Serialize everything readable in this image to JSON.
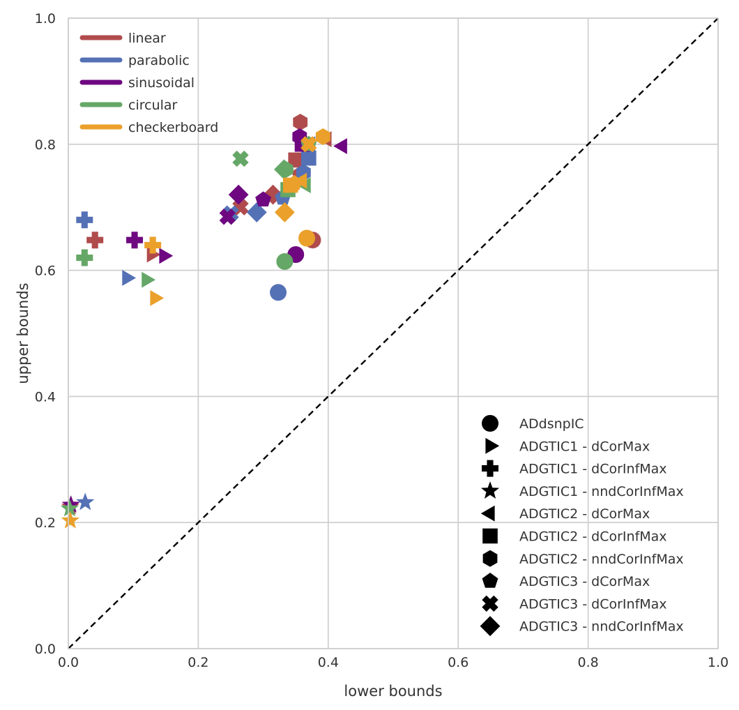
{
  "chart_data": {
    "type": "scatter",
    "xlabel": "lower bounds",
    "ylabel": "upper bounds",
    "xlim": [
      0,
      1
    ],
    "ylim": [
      0,
      1
    ],
    "xticks": [
      "0.0",
      "0.2",
      "0.4",
      "0.6",
      "0.8",
      "1.0"
    ],
    "yticks": [
      "0.0",
      "0.2",
      "0.4",
      "0.6",
      "0.8",
      "1.0"
    ],
    "grid": true,
    "reference_line": {
      "style": "dashed",
      "from": [
        0,
        0
      ],
      "to": [
        1,
        1
      ],
      "color": "#000000"
    },
    "color_legend": {
      "placement": "top-left",
      "entries": [
        {
          "name": "linear",
          "color": "#b04b4d"
        },
        {
          "name": "parabolic",
          "color": "#5471b6"
        },
        {
          "name": "sinusoidal",
          "color": "#6e0780"
        },
        {
          "name": "circular",
          "color": "#65a767"
        },
        {
          "name": "checkerboard",
          "color": "#eaa02a"
        }
      ]
    },
    "marker_legend": {
      "placement": "bottom-right",
      "entries": [
        {
          "name": "ADdsnpIC",
          "marker": "circle"
        },
        {
          "name": "ADGTIC1 - dCorMax",
          "marker": "triangle-right"
        },
        {
          "name": "ADGTIC1 - dCorInfMax",
          "marker": "plus"
        },
        {
          "name": "ADGTIC1 - nndCorInfMax",
          "marker": "star"
        },
        {
          "name": "ADGTIC2 - dCorMax",
          "marker": "triangle-left"
        },
        {
          "name": "ADGTIC2 - dCorInfMax",
          "marker": "square"
        },
        {
          "name": "ADGTIC2 - nndCorInfMax",
          "marker": "hexagon"
        },
        {
          "name": "ADGTIC3 - dCorMax",
          "marker": "pentagon"
        },
        {
          "name": "ADGTIC3 - dCorInfMax",
          "marker": "x"
        },
        {
          "name": "ADGTIC3 - nndCorInfMax",
          "marker": "diamond"
        }
      ]
    },
    "points": [
      {
        "series": "linear",
        "marker": "circle",
        "x": 0.376,
        "y": 0.648
      },
      {
        "series": "linear",
        "marker": "triangle-right",
        "x": 0.128,
        "y": 0.625
      },
      {
        "series": "linear",
        "marker": "plus",
        "x": 0.041,
        "y": 0.648
      },
      {
        "series": "linear",
        "marker": "star",
        "x": 0.003,
        "y": 0.225
      },
      {
        "series": "linear",
        "marker": "triangle-left",
        "x": 0.398,
        "y": 0.808
      },
      {
        "series": "linear",
        "marker": "square",
        "x": 0.35,
        "y": 0.775
      },
      {
        "series": "linear",
        "marker": "hexagon",
        "x": 0.357,
        "y": 0.835
      },
      {
        "series": "linear",
        "marker": "pentagon",
        "x": 0.356,
        "y": 0.752
      },
      {
        "series": "linear",
        "marker": "x",
        "x": 0.265,
        "y": 0.7
      },
      {
        "series": "linear",
        "marker": "diamond",
        "x": 0.315,
        "y": 0.72
      },
      {
        "series": "parabolic",
        "marker": "circle",
        "x": 0.323,
        "y": 0.565
      },
      {
        "series": "parabolic",
        "marker": "triangle-right",
        "x": 0.09,
        "y": 0.588
      },
      {
        "series": "parabolic",
        "marker": "plus",
        "x": 0.025,
        "y": 0.68
      },
      {
        "series": "parabolic",
        "marker": "star",
        "x": 0.026,
        "y": 0.232
      },
      {
        "series": "parabolic",
        "marker": "triangle-left",
        "x": 0.373,
        "y": 0.8
      },
      {
        "series": "parabolic",
        "marker": "square",
        "x": 0.37,
        "y": 0.778
      },
      {
        "series": "parabolic",
        "marker": "hexagon",
        "x": 0.362,
        "y": 0.755
      },
      {
        "series": "parabolic",
        "marker": "pentagon",
        "x": 0.33,
        "y": 0.715
      },
      {
        "series": "parabolic",
        "marker": "x",
        "x": 0.25,
        "y": 0.69
      },
      {
        "series": "parabolic",
        "marker": "diamond",
        "x": 0.29,
        "y": 0.692
      },
      {
        "series": "sinusoidal",
        "marker": "circle",
        "x": 0.35,
        "y": 0.625
      },
      {
        "series": "sinusoidal",
        "marker": "triangle-right",
        "x": 0.147,
        "y": 0.623
      },
      {
        "series": "sinusoidal",
        "marker": "plus",
        "x": 0.102,
        "y": 0.648
      },
      {
        "series": "sinusoidal",
        "marker": "star",
        "x": 0.004,
        "y": 0.228
      },
      {
        "series": "sinusoidal",
        "marker": "triangle-left",
        "x": 0.422,
        "y": 0.797
      },
      {
        "series": "sinusoidal",
        "marker": "square",
        "x": 0.36,
        "y": 0.8
      },
      {
        "series": "sinusoidal",
        "marker": "hexagon",
        "x": 0.356,
        "y": 0.812
      },
      {
        "series": "sinusoidal",
        "marker": "pentagon",
        "x": 0.3,
        "y": 0.712
      },
      {
        "series": "sinusoidal",
        "marker": "x",
        "x": 0.245,
        "y": 0.685
      },
      {
        "series": "sinusoidal",
        "marker": "diamond",
        "x": 0.262,
        "y": 0.72
      },
      {
        "series": "circular",
        "marker": "circle",
        "x": 0.333,
        "y": 0.614
      },
      {
        "series": "circular",
        "marker": "triangle-right",
        "x": 0.12,
        "y": 0.585
      },
      {
        "series": "circular",
        "marker": "plus",
        "x": 0.025,
        "y": 0.62
      },
      {
        "series": "circular",
        "marker": "star",
        "x": 0.002,
        "y": 0.222
      },
      {
        "series": "circular",
        "marker": "triangle-left",
        "x": 0.366,
        "y": 0.735
      },
      {
        "series": "circular",
        "marker": "square",
        "x": 0.338,
        "y": 0.728
      },
      {
        "series": "circular",
        "marker": "hexagon",
        "x": 0.335,
        "y": 0.76
      },
      {
        "series": "circular",
        "marker": "pentagon",
        "x": 0.37,
        "y": 0.8
      },
      {
        "series": "circular",
        "marker": "x",
        "x": 0.265,
        "y": 0.777
      },
      {
        "series": "circular",
        "marker": "diamond",
        "x": 0.332,
        "y": 0.76
      },
      {
        "series": "checkerboard",
        "marker": "circle",
        "x": 0.367,
        "y": 0.651
      },
      {
        "series": "checkerboard",
        "marker": "triangle-right",
        "x": 0.133,
        "y": 0.556
      },
      {
        "series": "checkerboard",
        "marker": "plus",
        "x": 0.13,
        "y": 0.64
      },
      {
        "series": "checkerboard",
        "marker": "star",
        "x": 0.003,
        "y": 0.203
      },
      {
        "series": "checkerboard",
        "marker": "triangle-left",
        "x": 0.36,
        "y": 0.742
      },
      {
        "series": "checkerboard",
        "marker": "square",
        "x": 0.342,
        "y": 0.735
      },
      {
        "series": "checkerboard",
        "marker": "hexagon",
        "x": 0.392,
        "y": 0.812
      },
      {
        "series": "checkerboard",
        "marker": "pentagon",
        "x": 0.348,
        "y": 0.738
      },
      {
        "series": "checkerboard",
        "marker": "x",
        "x": 0.37,
        "y": 0.8
      },
      {
        "series": "checkerboard",
        "marker": "diamond",
        "x": 0.333,
        "y": 0.692
      }
    ]
  }
}
